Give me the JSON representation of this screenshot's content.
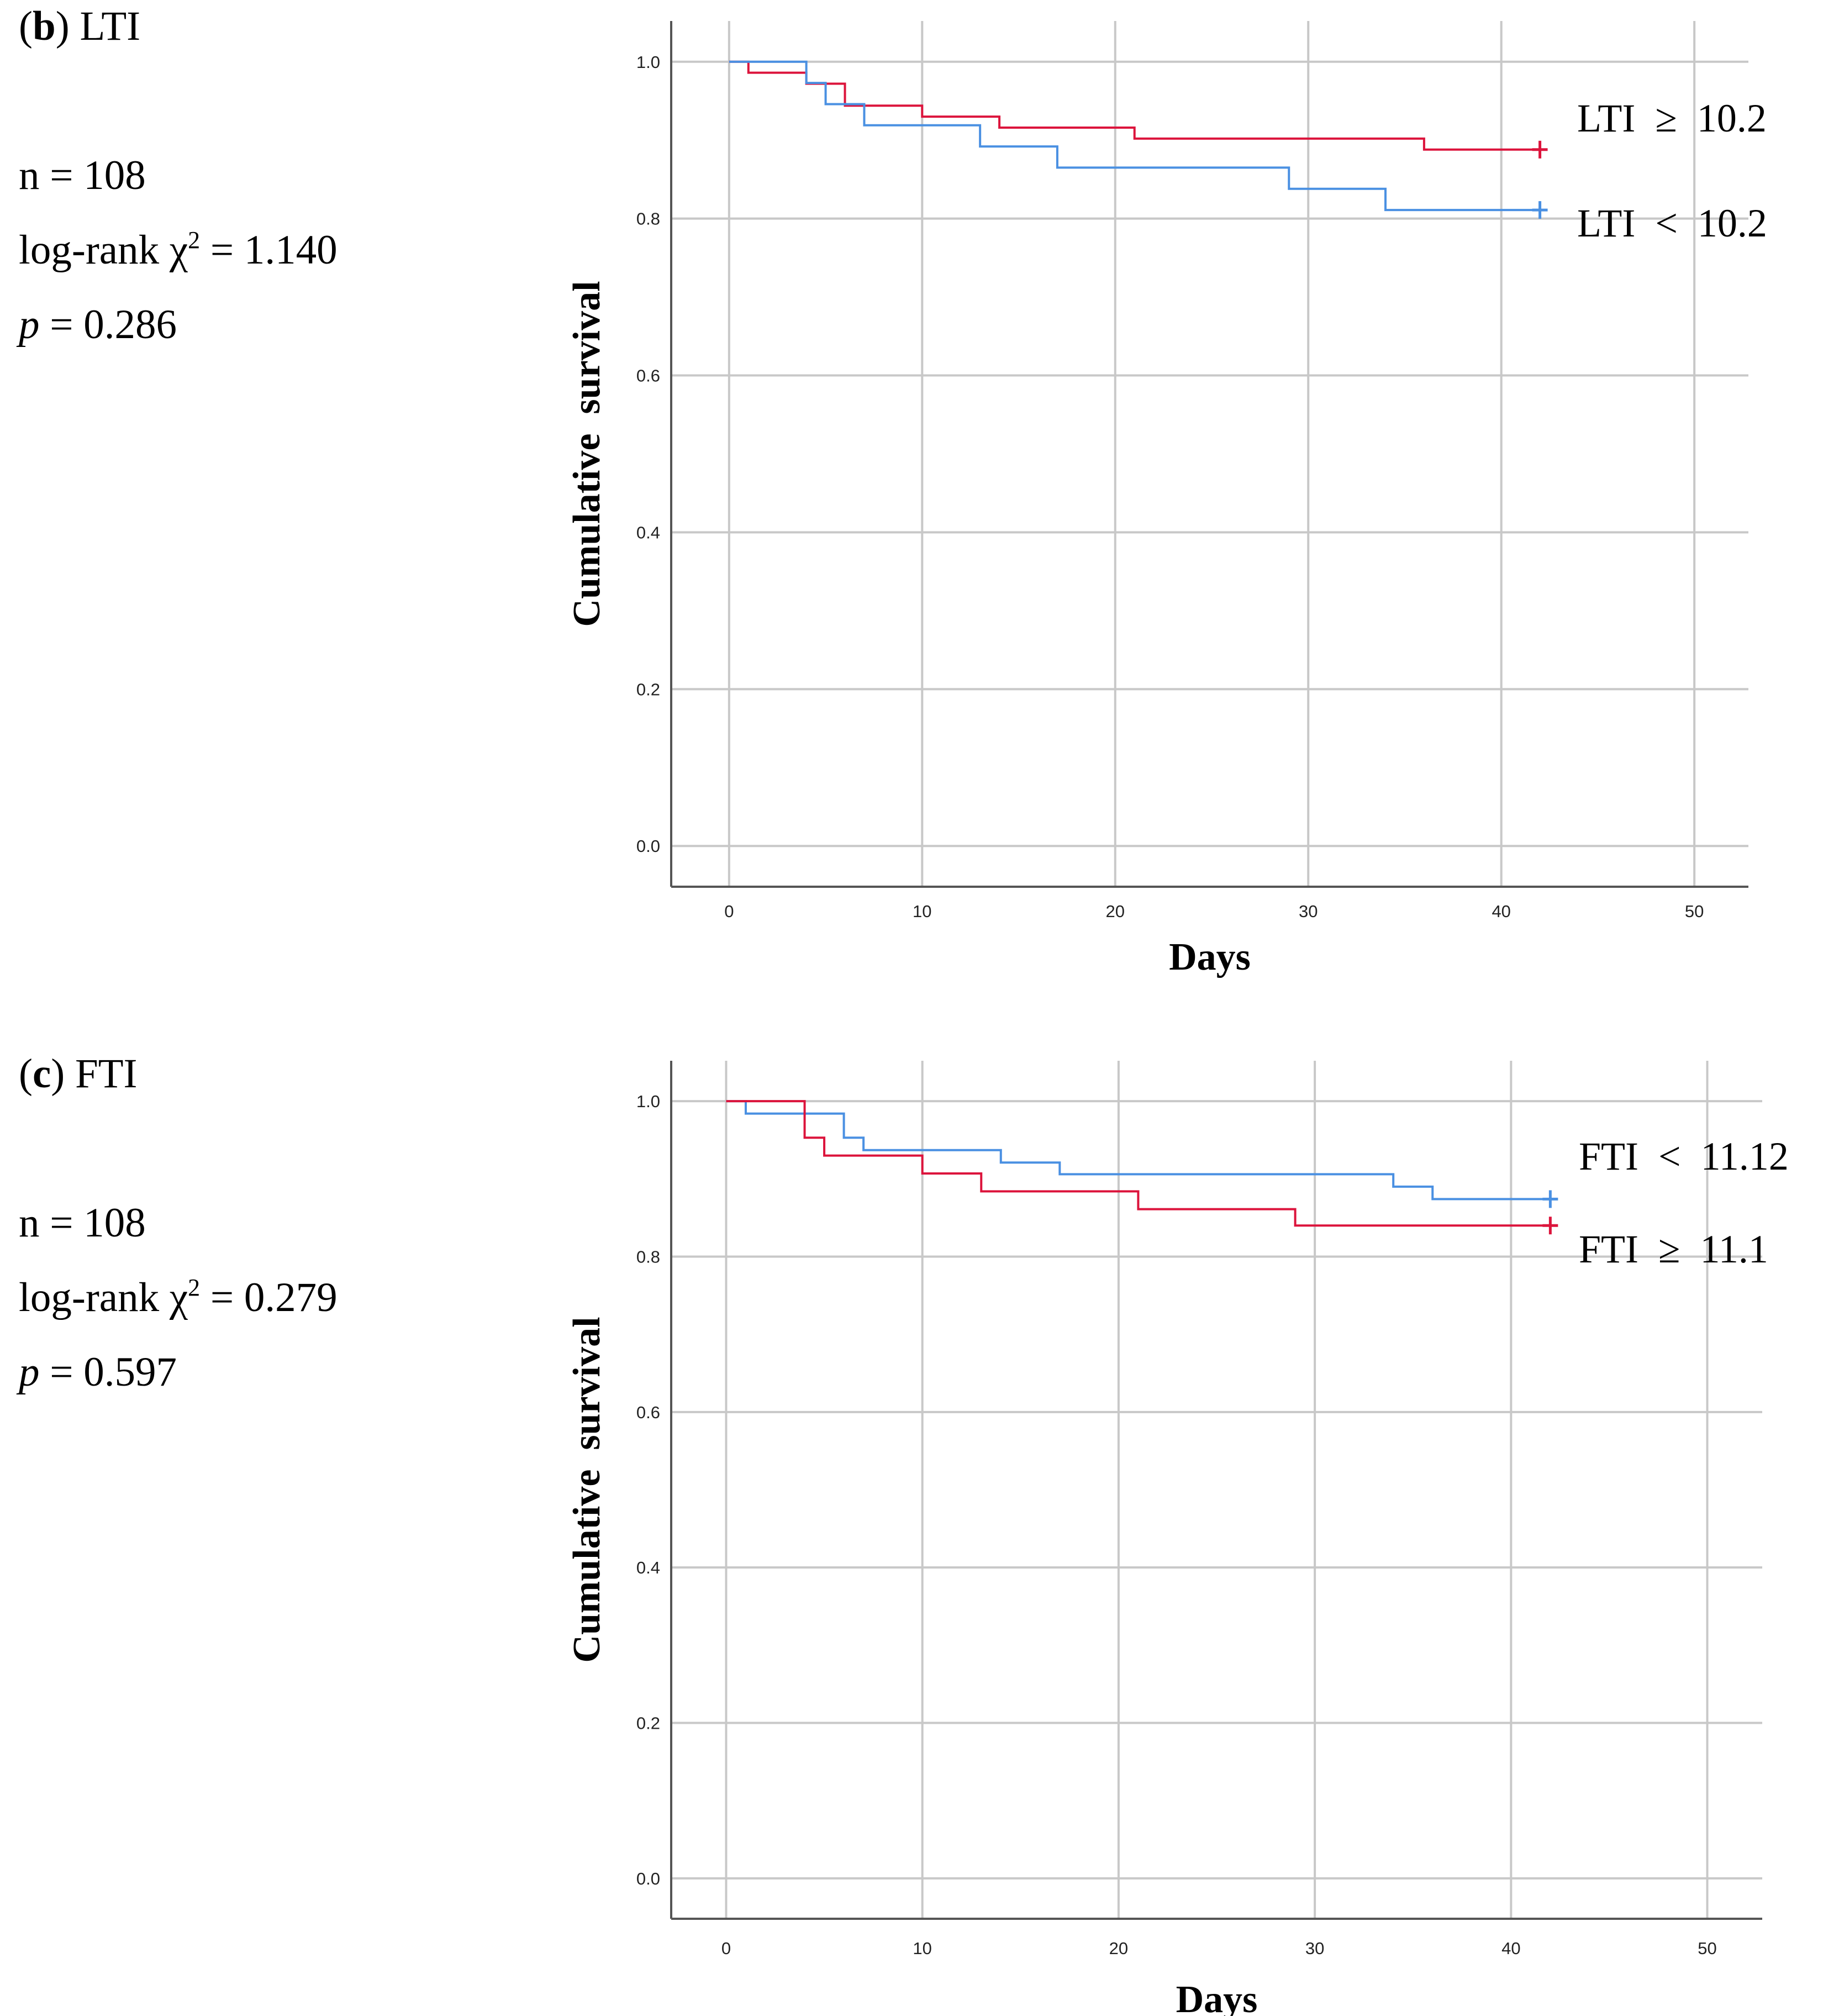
{
  "panels": [
    {
      "id": "b",
      "letter": "b",
      "name": "LTI",
      "n_text": "n = 108",
      "logrank_prefix": "log-rank χ",
      "logrank_sup": "2",
      "logrank_value": " = 1.140",
      "p_symbol": "p",
      "p_value": " = 0.286"
    },
    {
      "id": "c",
      "letter": "c",
      "name": "FTI",
      "n_text": "n = 108",
      "logrank_prefix": "log-rank χ",
      "logrank_sup": "2",
      "logrank_value": " = 0.279",
      "p_symbol": "p",
      "p_value": " = 0.597"
    }
  ],
  "colors": {
    "red": "#dc143c",
    "blue": "#4a90e2",
    "grid": "#c8c8c8",
    "axis": "#555555"
  },
  "chart_data": [
    {
      "type": "line",
      "subtype": "kaplan-meier step",
      "panel": "b",
      "xlabel": "Days",
      "ylabel": "Cumulative  survival",
      "xlim": [
        -3,
        52.8
      ],
      "ylim": [
        -0.052,
        1.052
      ],
      "xticks": [
        0,
        10,
        20,
        30,
        40,
        50
      ],
      "yticks": [
        0.0,
        0.2,
        0.4,
        0.6,
        0.8,
        1.0
      ],
      "xtick_labels": [
        "0",
        "10",
        "20",
        "30",
        "40",
        "50"
      ],
      "ytick_labels": [
        "0.0",
        "0.2",
        "0.4",
        "0.6",
        "0.8",
        "1.0"
      ],
      "grid": true,
      "series": [
        {
          "name": "LTI ≥ 10.2",
          "label": "LTI  ≥  10.2",
          "color": "red",
          "censor_x": 42,
          "x": [
            0,
            1,
            4,
            6,
            10,
            14,
            21,
            36,
            42
          ],
          "y": [
            1.0,
            0.986,
            0.972,
            0.944,
            0.93,
            0.916,
            0.902,
            0.888,
            0.888
          ]
        },
        {
          "name": "LTI < 10.2",
          "label": "LTI  <  10.2",
          "color": "blue",
          "censor_x": 42,
          "x": [
            0,
            4,
            5,
            7,
            13,
            17,
            29,
            34,
            42
          ],
          "y": [
            1.0,
            0.973,
            0.946,
            0.919,
            0.892,
            0.865,
            0.838,
            0.811,
            0.811
          ]
        }
      ]
    },
    {
      "type": "line",
      "subtype": "kaplan-meier step",
      "panel": "c",
      "xlabel": "Days",
      "ylabel": "Cumulative  survival",
      "xlim": [
        -2.8,
        52.8
      ],
      "ylim": [
        -0.052,
        1.052
      ],
      "xticks": [
        0,
        10,
        20,
        30,
        40,
        50
      ],
      "yticks": [
        0.0,
        0.2,
        0.4,
        0.6,
        0.8,
        1.0
      ],
      "xtick_labels": [
        "0",
        "10",
        "20",
        "30",
        "40",
        "50"
      ],
      "ytick_labels": [
        "0.0",
        "0.2",
        "0.4",
        "0.6",
        "0.8",
        "1.0"
      ],
      "grid": true,
      "series": [
        {
          "name": "FTI < 11.12",
          "label": "FTI  <  11.12",
          "color": "blue",
          "censor_x": 42,
          "x": [
            0,
            1,
            6,
            7,
            14,
            17,
            34,
            36,
            42
          ],
          "y": [
            1.0,
            0.984,
            0.953,
            0.937,
            0.921,
            0.906,
            0.89,
            0.874,
            0.874
          ]
        },
        {
          "name": "FTI ≥ 11.1",
          "label": "FTI  ≥  11.1",
          "color": "red",
          "censor_x": 42,
          "x": [
            0,
            4,
            5,
            10,
            13,
            21,
            29,
            42
          ],
          "y": [
            1.0,
            0.953,
            0.93,
            0.907,
            0.884,
            0.861,
            0.84,
            0.84
          ]
        }
      ]
    }
  ]
}
